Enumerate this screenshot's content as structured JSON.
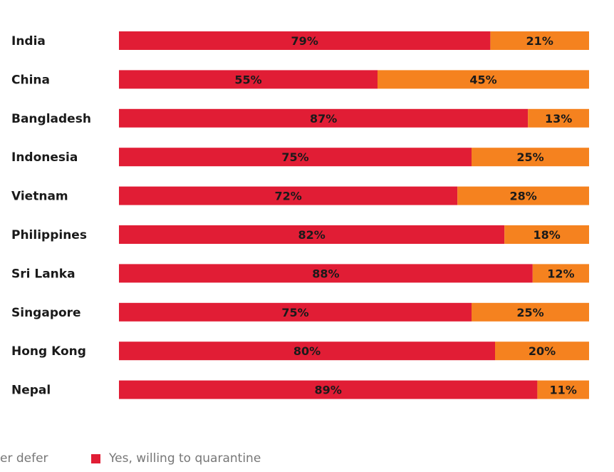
{
  "page": {
    "title": ""
  },
  "colors": {
    "yes": "#e11d35",
    "defer": "#f5821f"
  },
  "legend": {
    "items": [
      {
        "label": "er defer",
        "color": "#f5821f",
        "swatch": false
      },
      {
        "label": "Yes, willing to quarantine",
        "color": "#e11d35",
        "swatch": true
      }
    ]
  },
  "chart_data": {
    "type": "bar",
    "orientation": "horizontal",
    "stacked": true,
    "categories": [
      "India",
      "China",
      "Bangladesh",
      "Indonesia",
      "Vietnam",
      "Philippines",
      "Sri Lanka",
      "Singapore",
      "Hong Kong",
      "Nepal"
    ],
    "series": [
      {
        "values": [
          79,
          55,
          87,
          75,
          72,
          82,
          88,
          75,
          80,
          89
        ],
        "color": "#e11d35"
      },
      {
        "values": [
          21,
          45,
          13,
          25,
          28,
          18,
          12,
          25,
          20,
          11
        ],
        "color": "#f5821f"
      }
    ],
    "value_suffix": "%",
    "xlim": [
      0,
      100
    ],
    "grid": false,
    "legend_position": "bottom"
  }
}
